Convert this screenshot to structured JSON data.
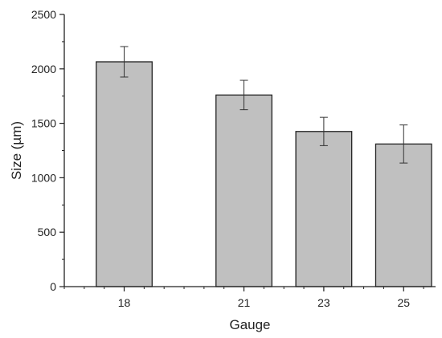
{
  "chart_data": {
    "type": "bar",
    "title": "",
    "xlabel": "Gauge",
    "ylabel": "Size (µm)",
    "categories": [
      "18",
      "21",
      "23",
      "25"
    ],
    "x": [
      18,
      21,
      23,
      25
    ],
    "xlim": [
      16.5,
      25.8
    ],
    "values": [
      2065,
      1760,
      1425,
      1310
    ],
    "errors": [
      140,
      135,
      130,
      175
    ],
    "ylim": [
      0,
      2500
    ],
    "yticks": [
      0,
      500,
      1000,
      1500,
      2000,
      2500
    ],
    "grid": false,
    "legend": "none",
    "colors": {
      "bar_fill": "#c0c0c0",
      "bar_stroke": "#222222",
      "axis": "#222222"
    }
  }
}
